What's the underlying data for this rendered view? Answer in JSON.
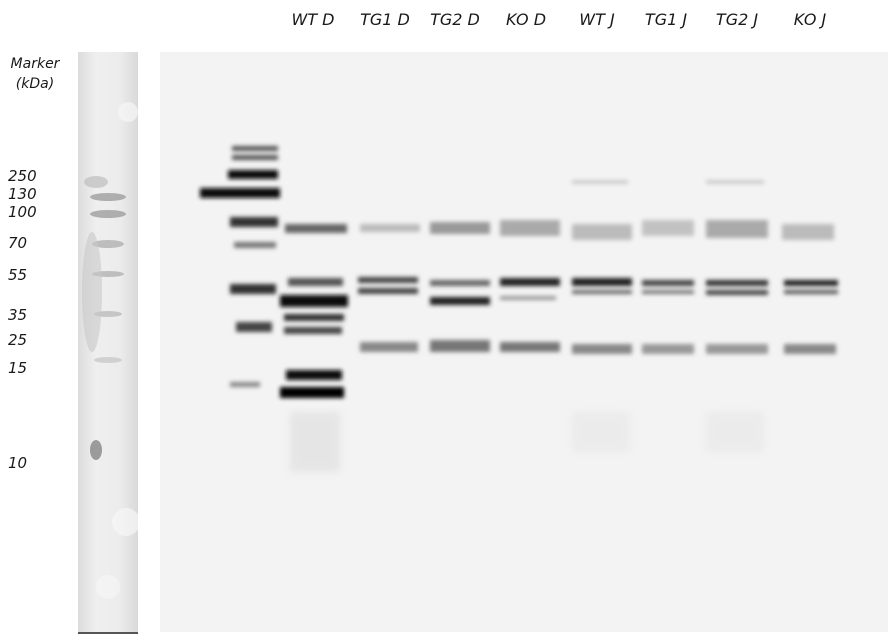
{
  "lanes": [
    "WT D",
    "TG1 D",
    "TG2 D",
    "KO D",
    "WT J",
    "TG1 J",
    "TG2 J",
    "KO J"
  ],
  "marker": {
    "title_line1": "Marker",
    "title_line2": "(kDa)",
    "weights": [
      "250",
      "130",
      "100",
      "70",
      "55",
      "35",
      "25",
      "15",
      "10"
    ]
  }
}
